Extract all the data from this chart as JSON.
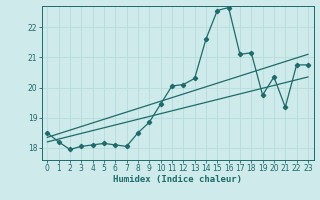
{
  "xlabel": "Humidex (Indice chaleur)",
  "bg_color": "#ceeaea",
  "line_color": "#1e6b6b",
  "grid_color": "#b8dede",
  "xlim": [
    -0.5,
    23.5
  ],
  "ylim": [
    17.6,
    22.7
  ],
  "yticks": [
    18,
    19,
    20,
    21,
    22
  ],
  "xticks": [
    0,
    1,
    2,
    3,
    4,
    5,
    6,
    7,
    8,
    9,
    10,
    11,
    12,
    13,
    14,
    15,
    16,
    17,
    18,
    19,
    20,
    21,
    22,
    23
  ],
  "series1_x": [
    0,
    1,
    2,
    3,
    4,
    5,
    6,
    7,
    8,
    9,
    10,
    11,
    12,
    13,
    14,
    15,
    16,
    17,
    18,
    19,
    20,
    21,
    22,
    23
  ],
  "series1_y": [
    18.5,
    18.2,
    17.95,
    18.05,
    18.1,
    18.15,
    18.1,
    18.05,
    18.5,
    18.85,
    19.45,
    20.05,
    20.1,
    20.3,
    21.6,
    22.55,
    22.65,
    21.1,
    21.15,
    19.75,
    20.35,
    19.35,
    20.75,
    20.75
  ],
  "series2_x": [
    0,
    23
  ],
  "series2_y": [
    18.35,
    21.1
  ],
  "series3_x": [
    0,
    23
  ],
  "series3_y": [
    18.2,
    20.35
  ]
}
